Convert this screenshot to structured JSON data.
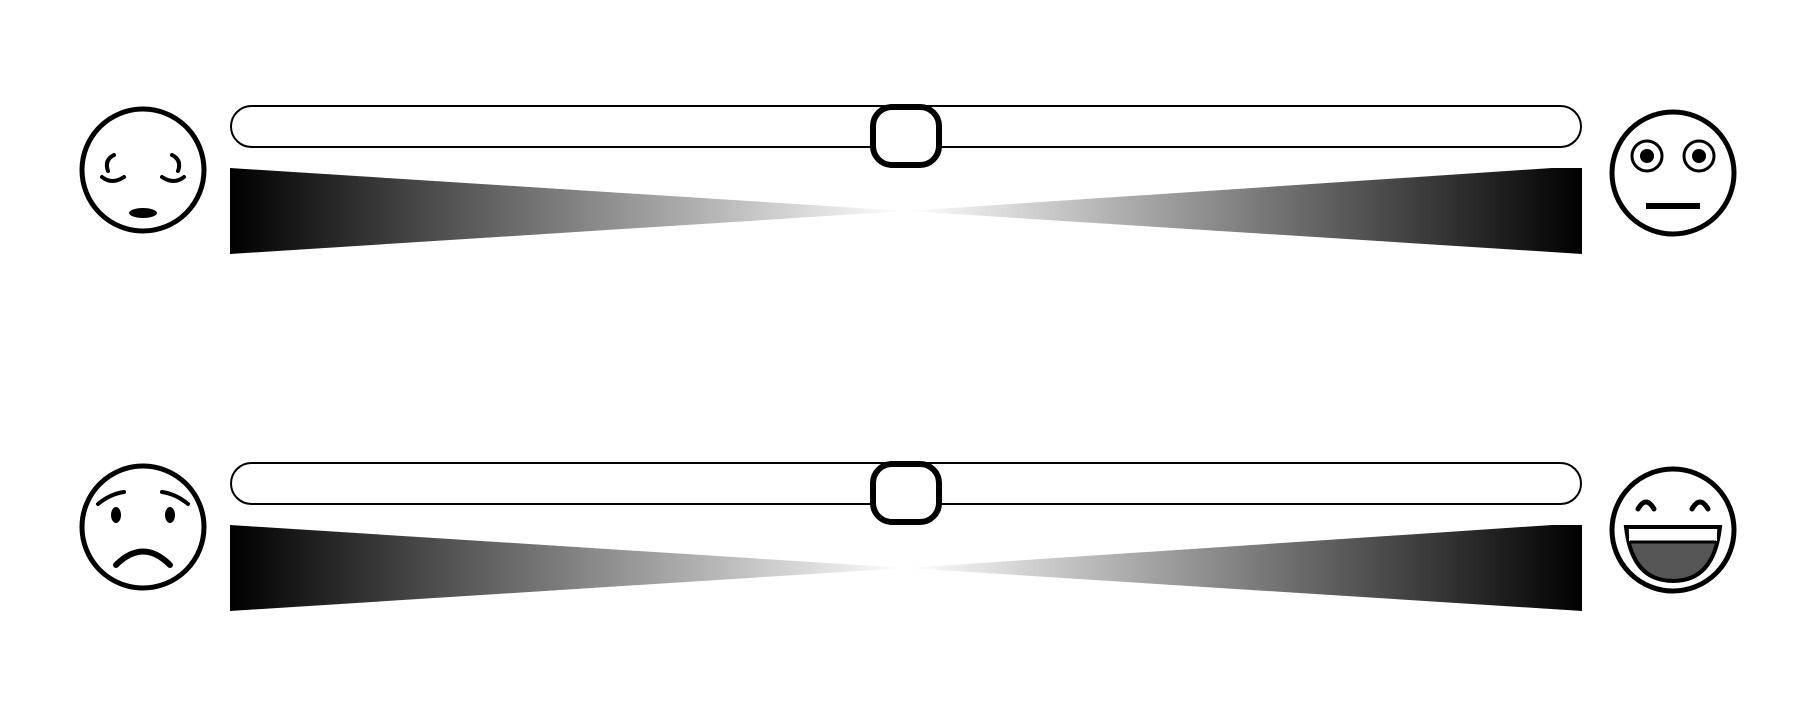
{
  "scales": [
    {
      "left_anchor_icon": "relaxed-face-icon",
      "right_anchor_icon": "alert-wide-eyed-face-icon",
      "value": 0.5
    },
    {
      "left_anchor_icon": "sad-face-icon",
      "right_anchor_icon": "laughing-face-icon",
      "value": 0.5
    }
  ],
  "colors": {
    "stroke": "#000000",
    "background": "#ffffff",
    "mouth_fill": "#555555"
  }
}
